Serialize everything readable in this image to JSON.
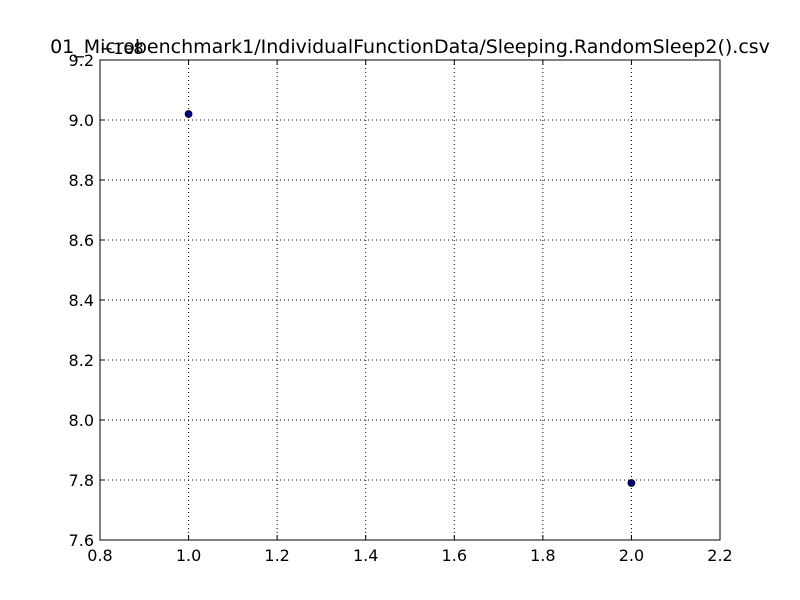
{
  "chart_data": {
    "type": "scatter",
    "title": "01_Microbenchmark1/IndividualFunctionData/Sleeping.RandomSleep2().csv",
    "xlabel": "",
    "ylabel": "",
    "y_offset_label": "−1e8",
    "xlim": [
      0.8,
      2.2
    ],
    "ylim": [
      7.6,
      9.2
    ],
    "x_ticks": [
      "0.8",
      "1.0",
      "1.2",
      "1.4",
      "1.6",
      "1.8",
      "2.0",
      "2.2"
    ],
    "y_ticks": [
      "7.6",
      "7.8",
      "8.0",
      "8.2",
      "8.4",
      "8.6",
      "8.8",
      "9.0",
      "9.2"
    ],
    "grid": true,
    "series": [
      {
        "points": [
          {
            "x": 1.0,
            "y": 9.02
          },
          {
            "x": 2.0,
            "y": 7.79
          }
        ],
        "color": "#00008b"
      }
    ]
  }
}
